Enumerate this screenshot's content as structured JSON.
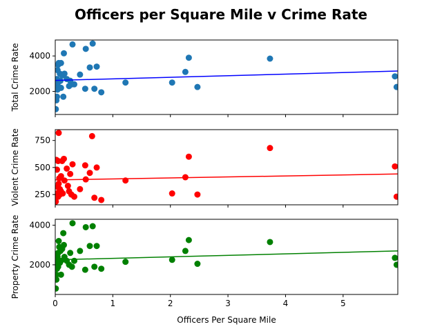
{
  "chart_data": {
    "title": "Officers per Square Mile v Crime Rate",
    "xlabel": "Officers Per Square Mile",
    "x_ticks": [
      0,
      1,
      2,
      3,
      4,
      5
    ],
    "xlim": [
      0,
      5.95
    ],
    "shared_x": true,
    "panels": [
      {
        "type": "scatter",
        "ylabel": "Total Crime Rate",
        "ylim": [
          700,
          4900
        ],
        "y_ticks": [
          2000,
          4000
        ],
        "color": "#1f77b4",
        "line_color": "#0000ff",
        "trend": {
          "x": [
            0,
            5.95
          ],
          "y": [
            2620,
            3150
          ]
        },
        "x": [
          0.01,
          0.02,
          0.02,
          0.03,
          0.03,
          0.04,
          0.04,
          0.05,
          0.05,
          0.06,
          0.07,
          0.08,
          0.09,
          0.1,
          0.1,
          0.12,
          0.14,
          0.15,
          0.16,
          0.2,
          0.24,
          0.26,
          0.29,
          0.3,
          0.33,
          0.43,
          0.52,
          0.53,
          0.6,
          0.65,
          0.68,
          0.72,
          0.8,
          1.22,
          2.03,
          2.26,
          2.32,
          2.47,
          3.73,
          5.9,
          5.93
        ],
        "y": [
          1000,
          1500,
          2300,
          1700,
          2700,
          2100,
          3200,
          2500,
          3500,
          3600,
          2200,
          3000,
          2600,
          3600,
          2200,
          2900,
          1700,
          4150,
          3000,
          2700,
          2300,
          2600,
          2400,
          4650,
          2400,
          2950,
          2150,
          4400,
          3350,
          4700,
          2150,
          3400,
          1950,
          2500,
          2500,
          3100,
          3900,
          2250,
          3850,
          2850,
          2250
        ]
      },
      {
        "type": "scatter",
        "ylabel": "Violent Crime Rate",
        "ylim": [
          155,
          850
        ],
        "y_ticks": [
          250,
          500,
          750
        ],
        "color": "#ff0000",
        "line_color": "#ff0000",
        "trend": {
          "x": [
            0,
            5.95
          ],
          "y": [
            385,
            440
          ]
        },
        "x": [
          0.01,
          0.02,
          0.03,
          0.03,
          0.04,
          0.05,
          0.05,
          0.06,
          0.06,
          0.07,
          0.08,
          0.08,
          0.1,
          0.1,
          0.12,
          0.13,
          0.15,
          0.16,
          0.2,
          0.22,
          0.24,
          0.26,
          0.28,
          0.3,
          0.33,
          0.43,
          0.52,
          0.53,
          0.6,
          0.64,
          0.68,
          0.72,
          0.8,
          1.22,
          2.03,
          2.26,
          2.32,
          2.47,
          3.73,
          5.9,
          5.93
        ],
        "y": [
          185,
          570,
          260,
          480,
          320,
          560,
          230,
          820,
          350,
          400,
          300,
          250,
          420,
          280,
          560,
          260,
          580,
          380,
          490,
          330,
          280,
          440,
          250,
          530,
          230,
          300,
          520,
          390,
          450,
          790,
          220,
          500,
          200,
          380,
          260,
          410,
          600,
          250,
          680,
          510,
          230
        ]
      },
      {
        "type": "scatter",
        "ylabel": "Property Crime Rate",
        "ylim": [
          500,
          4300
        ],
        "y_ticks": [
          2000,
          4000
        ],
        "color": "#008000",
        "line_color": "#008000",
        "trend": {
          "x": [
            0,
            5.95
          ],
          "y": [
            2250,
            2700
          ]
        },
        "x": [
          0.01,
          0.02,
          0.02,
          0.03,
          0.03,
          0.04,
          0.05,
          0.05,
          0.06,
          0.07,
          0.08,
          0.09,
          0.1,
          0.1,
          0.12,
          0.14,
          0.15,
          0.16,
          0.2,
          0.24,
          0.26,
          0.29,
          0.3,
          0.33,
          0.43,
          0.52,
          0.53,
          0.6,
          0.65,
          0.68,
          0.72,
          0.8,
          1.22,
          2.03,
          2.26,
          2.32,
          2.47,
          3.73,
          5.9,
          5.93
        ],
        "y": [
          800,
          1250,
          1500,
          1800,
          2100,
          2400,
          2600,
          1900,
          3200,
          2900,
          2100,
          2700,
          2200,
          1500,
          2800,
          3600,
          3000,
          2400,
          2200,
          2000,
          2600,
          1900,
          4100,
          2200,
          2700,
          1750,
          3900,
          2950,
          3950,
          1900,
          2950,
          1800,
          2150,
          2250,
          2700,
          3250,
          2050,
          3150,
          2350,
          2000
        ]
      }
    ]
  }
}
